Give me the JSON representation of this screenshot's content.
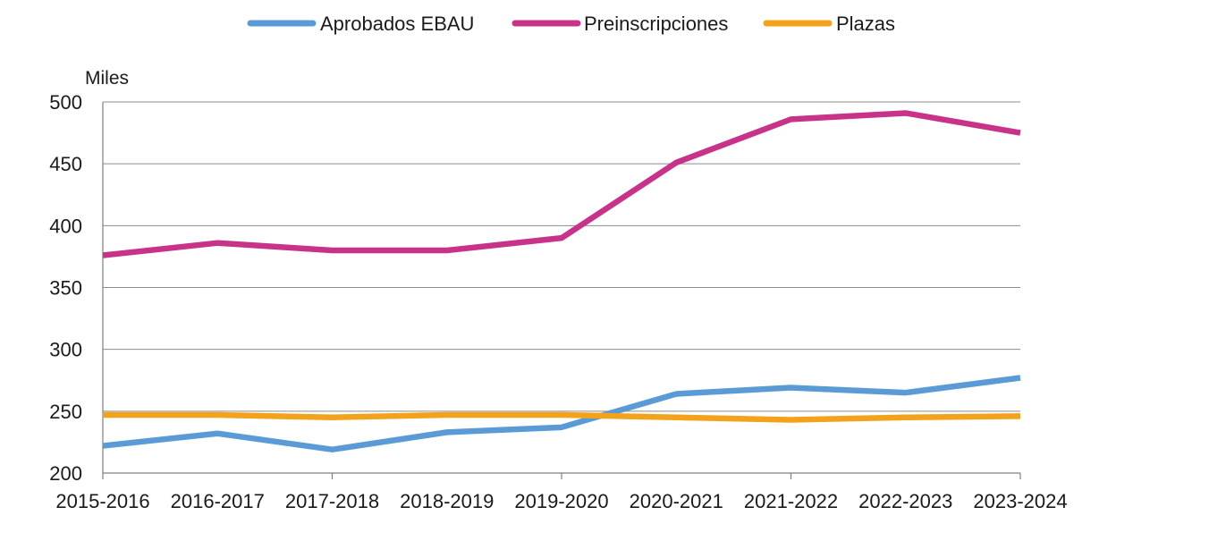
{
  "chart_data": {
    "type": "line",
    "title": "",
    "xlabel": "",
    "ylabel": "Miles",
    "ylim": [
      200,
      500
    ],
    "yticks": [
      200,
      250,
      300,
      350,
      400,
      450,
      500
    ],
    "grid": true,
    "legend_position": "top-center",
    "categories": [
      "2015-2016",
      "2016-2017",
      "2017-2018",
      "2018-2019",
      "2019-2020",
      "2020-2021",
      "2021-2022",
      "2022-2023",
      "2023-2024"
    ],
    "series": [
      {
        "name": "Aprobados EBAU",
        "color": "#5b9bd5",
        "values": [
          222,
          232,
          219,
          233,
          237,
          264,
          269,
          265,
          277
        ]
      },
      {
        "name": "Preinscripciones",
        "color": "#c8338a",
        "values": [
          376,
          386,
          380,
          380,
          390,
          451,
          486,
          491,
          475
        ]
      },
      {
        "name": "Plazas",
        "color": "#f2a31b",
        "values": [
          247,
          247,
          245,
          247,
          247,
          245,
          243,
          245,
          246
        ]
      }
    ]
  }
}
